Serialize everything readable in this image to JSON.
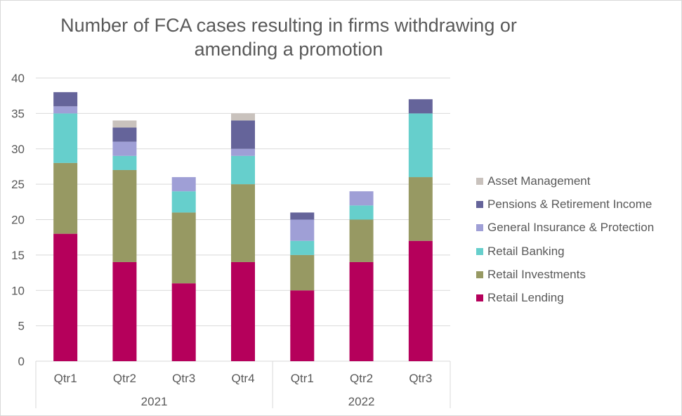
{
  "chart_data": {
    "type": "bar",
    "stacked": true,
    "title": "Number of FCA cases resulting in firms withdrawing or amending a promotion",
    "title_lines": [
      "Number of FCA cases resulting in firms withdrawing or",
      "amending a promotion"
    ],
    "categories": [
      "Qtr1",
      "Qtr2",
      "Qtr3",
      "Qtr4",
      "Qtr1",
      "Qtr2",
      "Qtr3"
    ],
    "groups": [
      {
        "label": "2021",
        "count": 4
      },
      {
        "label": "2022",
        "count": 3
      }
    ],
    "ylim": [
      0,
      40
    ],
    "yticks": [
      0,
      5,
      10,
      15,
      20,
      25,
      30,
      35,
      40
    ],
    "grid": true,
    "legend_position": "right",
    "series": [
      {
        "name": "Retail Lending",
        "color": "#b5005b",
        "values": [
          18,
          14,
          11,
          14,
          10,
          14,
          17
        ]
      },
      {
        "name": "Retail Investments",
        "color": "#979963",
        "values": [
          10,
          13,
          10,
          11,
          5,
          6,
          9
        ]
      },
      {
        "name": "Retail Banking",
        "color": "#66cfcc",
        "values": [
          7,
          2,
          3,
          4,
          2,
          2,
          9
        ]
      },
      {
        "name": "General Insurance & Protection",
        "color": "#9f9fd6",
        "values": [
          1,
          2,
          2,
          1,
          3,
          2,
          0
        ]
      },
      {
        "name": "Pensions & Retirement Income",
        "color": "#65649a",
        "values": [
          2,
          2,
          0,
          4,
          1,
          0,
          2
        ]
      },
      {
        "name": "Asset Management",
        "color": "#c9c2bd",
        "values": [
          0,
          1,
          0,
          1,
          0,
          0,
          0
        ]
      }
    ],
    "legend_order": [
      "Asset Management",
      "Pensions & Retirement Income",
      "General Insurance & Protection",
      "Retail Banking",
      "Retail Investments",
      "Retail Lending"
    ]
  }
}
